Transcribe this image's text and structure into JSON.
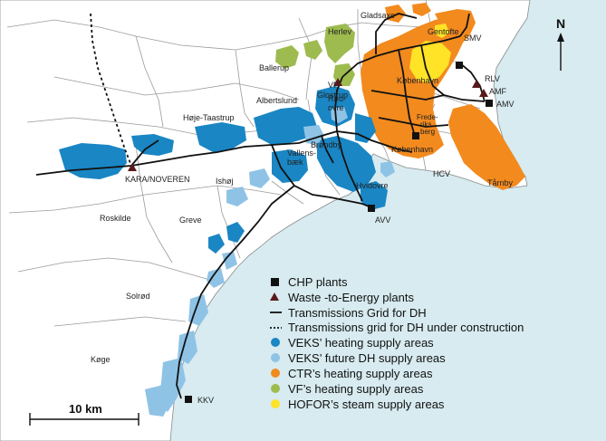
{
  "colors": {
    "sea": "#d7ebf0",
    "land": "#ffffff",
    "border": "#9a9a9a",
    "veks": "#1a86c4",
    "veks_future": "#8fc3e6",
    "ctr": "#f28a1e",
    "vf": "#9dbb4e",
    "hofor": "#ffe326",
    "grid": "#111111"
  },
  "places": {
    "gladsaxe": "Gladsaxe",
    "gentofte": "Gentofte",
    "herlev": "Herlev",
    "ballerup": "Ballerup",
    "smv": "SMV",
    "rlv": "RLV",
    "amf": "AMF",
    "amv": "AMV",
    "vf_plant": "VF",
    "glostrup": "Glostrup",
    "kobenhavn_n": "København",
    "albertslund": "Albertslund",
    "rodovre_1": "Rød-",
    "rodovre_2": "ovre",
    "frederiksberg_1": "Frede-",
    "frederiksberg_2": "riks",
    "frederiksberg_3": "berg",
    "hoje_taastrup": "Høje-Taastrup",
    "brondby": "Brøndby",
    "kobenhavn_s": "København",
    "vallensbaek_1": "Vallens-",
    "vallensbaek_2": "bæk",
    "ishoj": "Ishøj",
    "hvidovre": "Hvidovre",
    "hcv": "HCV",
    "tarnby": "Tårnby",
    "kara": "KARA/NOVEREN",
    "roskilde": "Roskilde",
    "greve": "Greve",
    "avv": "AVV",
    "solrod": "Solrød",
    "koge": "Køge",
    "kkv": "KKV"
  },
  "north": "N",
  "scale": "10 km",
  "legend": [
    {
      "key": "chp",
      "label": "CHP plants"
    },
    {
      "key": "wte",
      "label": "Waste -to-Energy plants"
    },
    {
      "key": "grid",
      "label": "Transmissions Grid for DH"
    },
    {
      "key": "grid_construction",
      "label": "Transmissions grid for DH under construction"
    },
    {
      "key": "veks",
      "label": "VEKS’ heating supply areas"
    },
    {
      "key": "veks_future",
      "label": "VEKS’ future DH supply areas"
    },
    {
      "key": "ctr",
      "label": "CTR’s heating supply areas"
    },
    {
      "key": "vf",
      "label": "VF’s heating supply areas"
    },
    {
      "key": "hofor",
      "label": "HOFOR’s steam supply areas"
    }
  ]
}
